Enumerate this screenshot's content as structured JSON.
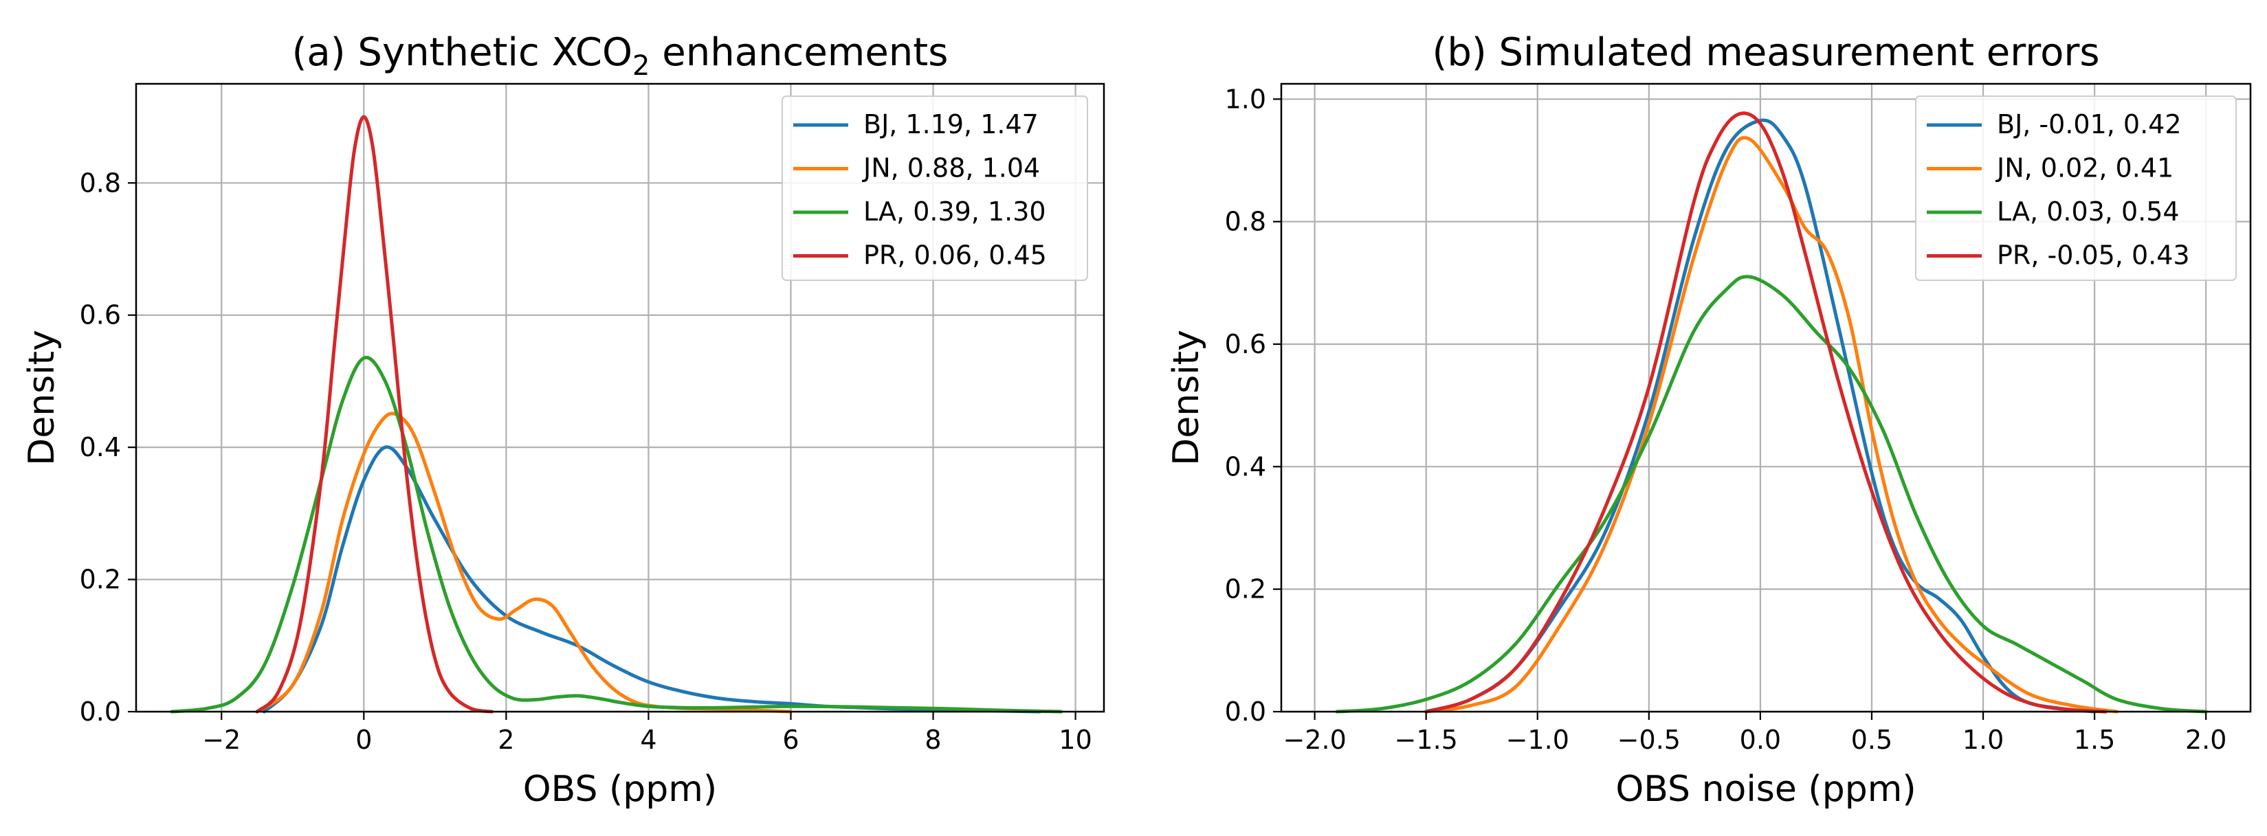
{
  "chart_data": [
    {
      "type": "line",
      "title": "(a) Synthetic XCO",
      "title_subscript": "2",
      "title_suffix": " enhancements",
      "xlabel": "OBS (ppm)",
      "ylabel": "Density",
      "xlim": [
        -3.2,
        10.4
      ],
      "ylim": [
        0,
        0.95
      ],
      "xticks": [
        -2,
        0,
        2,
        4,
        6,
        8,
        10
      ],
      "xtick_labels": [
        "−2",
        "0",
        "2",
        "4",
        "6",
        "8",
        "10"
      ],
      "yticks": [
        0,
        0.2,
        0.4,
        0.6,
        0.8
      ],
      "ytick_labels": [
        "0.0",
        "0.2",
        "0.4",
        "0.6",
        "0.8"
      ],
      "grid": true,
      "legend_position": "top-right",
      "series": [
        {
          "name": "BJ, 1.19, 1.47",
          "color": "#1f77b4",
          "x": [
            -1.4,
            -1.0,
            -0.6,
            -0.3,
            0.0,
            0.3,
            0.6,
            1.0,
            1.5,
            2.0,
            2.5,
            3.0,
            3.5,
            4.0,
            4.5,
            5.0,
            5.5,
            6.0,
            6.5,
            7.0,
            7.5,
            8.0,
            8.5,
            9.0,
            9.5
          ],
          "y": [
            0.0,
            0.04,
            0.13,
            0.25,
            0.35,
            0.4,
            0.37,
            0.29,
            0.2,
            0.145,
            0.12,
            0.1,
            0.07,
            0.045,
            0.03,
            0.02,
            0.015,
            0.012,
            0.008,
            0.006,
            0.004,
            0.003,
            0.002,
            0.001,
            0.0
          ]
        },
        {
          "name": "JN, 0.88, 1.04",
          "color": "#ff7f0e",
          "x": [
            -1.5,
            -1.0,
            -0.6,
            -0.3,
            0.0,
            0.25,
            0.45,
            0.7,
            1.0,
            1.3,
            1.6,
            1.9,
            2.15,
            2.4,
            2.65,
            2.9,
            3.2,
            3.5,
            3.8,
            4.1,
            4.5,
            5.0,
            5.5,
            6.0
          ],
          "y": [
            0.0,
            0.04,
            0.15,
            0.29,
            0.39,
            0.44,
            0.45,
            0.42,
            0.33,
            0.23,
            0.16,
            0.14,
            0.155,
            0.17,
            0.16,
            0.12,
            0.07,
            0.035,
            0.015,
            0.008,
            0.005,
            0.004,
            0.002,
            0.0
          ]
        },
        {
          "name": "LA, 0.39, 1.30",
          "color": "#2ca02c",
          "x": [
            -2.7,
            -2.2,
            -1.8,
            -1.4,
            -1.0,
            -0.6,
            -0.3,
            0.0,
            0.3,
            0.6,
            0.9,
            1.2,
            1.5,
            1.8,
            2.1,
            2.4,
            2.7,
            3.0,
            3.3,
            3.6,
            4.0,
            4.5,
            5.0,
            6.0,
            7.0,
            8.0,
            9.0,
            9.8
          ],
          "y": [
            0.0,
            0.005,
            0.02,
            0.07,
            0.19,
            0.35,
            0.47,
            0.535,
            0.5,
            0.4,
            0.27,
            0.16,
            0.085,
            0.04,
            0.02,
            0.018,
            0.022,
            0.024,
            0.02,
            0.014,
            0.008,
            0.006,
            0.006,
            0.008,
            0.007,
            0.005,
            0.002,
            0.0
          ]
        },
        {
          "name": "PR, 0.06, 0.45",
          "color": "#d62728",
          "x": [
            -1.5,
            -1.2,
            -0.9,
            -0.6,
            -0.4,
            -0.2,
            -0.1,
            0.0,
            0.1,
            0.2,
            0.4,
            0.6,
            0.8,
            1.0,
            1.2,
            1.5,
            1.8
          ],
          "y": [
            0.0,
            0.03,
            0.13,
            0.35,
            0.57,
            0.79,
            0.87,
            0.9,
            0.87,
            0.79,
            0.58,
            0.36,
            0.19,
            0.08,
            0.03,
            0.005,
            0.0
          ]
        }
      ]
    },
    {
      "type": "line",
      "title": "(b) Simulated measurement errors",
      "xlabel": "OBS noise (ppm)",
      "ylabel": "Density",
      "xlim": [
        -2.15,
        2.2
      ],
      "ylim": [
        0,
        1.025
      ],
      "xticks": [
        -2.0,
        -1.5,
        -1.0,
        -0.5,
        0.0,
        0.5,
        1.0,
        1.5,
        2.0
      ],
      "xtick_labels": [
        "−2.0",
        "−1.5",
        "−1.0",
        "−0.5",
        "0.0",
        "0.5",
        "1.0",
        "1.5",
        "2.0"
      ],
      "yticks": [
        0,
        0.2,
        0.4,
        0.6,
        0.8,
        1.0
      ],
      "ytick_labels": [
        "0.0",
        "0.2",
        "0.4",
        "0.6",
        "0.8",
        "1.0"
      ],
      "grid": true,
      "legend_position": "top-right",
      "series": [
        {
          "name": "BJ, -0.01, 0.42",
          "color": "#1f77b4",
          "x": [
            -1.5,
            -1.3,
            -1.1,
            -0.9,
            -0.7,
            -0.5,
            -0.3,
            -0.15,
            0.0,
            0.1,
            0.2,
            0.35,
            0.5,
            0.6,
            0.7,
            0.8,
            0.9,
            1.0,
            1.1,
            1.2,
            1.35,
            1.5
          ],
          "y": [
            0.0,
            0.02,
            0.07,
            0.17,
            0.29,
            0.49,
            0.77,
            0.92,
            0.965,
            0.94,
            0.86,
            0.63,
            0.39,
            0.27,
            0.21,
            0.185,
            0.15,
            0.09,
            0.04,
            0.015,
            0.005,
            0.0
          ]
        },
        {
          "name": "JN, 0.02, 0.41",
          "color": "#ff7f0e",
          "x": [
            -1.5,
            -1.3,
            -1.1,
            -0.9,
            -0.7,
            -0.5,
            -0.3,
            -0.15,
            -0.05,
            0.1,
            0.2,
            0.3,
            0.4,
            0.5,
            0.6,
            0.7,
            0.8,
            0.9,
            1.0,
            1.2,
            1.4,
            1.6
          ],
          "y": [
            0.0,
            0.01,
            0.04,
            0.14,
            0.27,
            0.47,
            0.74,
            0.9,
            0.935,
            0.86,
            0.79,
            0.75,
            0.64,
            0.46,
            0.31,
            0.21,
            0.15,
            0.11,
            0.08,
            0.03,
            0.01,
            0.0
          ]
        },
        {
          "name": "LA, 0.03, 0.54",
          "color": "#2ca02c",
          "x": [
            -1.9,
            -1.7,
            -1.5,
            -1.3,
            -1.1,
            -0.9,
            -0.7,
            -0.5,
            -0.3,
            -0.15,
            -0.05,
            0.1,
            0.25,
            0.4,
            0.55,
            0.7,
            0.85,
            1.0,
            1.15,
            1.3,
            1.45,
            1.6,
            1.8,
            2.0
          ],
          "y": [
            0.0,
            0.005,
            0.02,
            0.05,
            0.11,
            0.21,
            0.31,
            0.45,
            0.62,
            0.69,
            0.71,
            0.68,
            0.62,
            0.56,
            0.46,
            0.32,
            0.21,
            0.14,
            0.11,
            0.08,
            0.05,
            0.02,
            0.005,
            0.0
          ]
        },
        {
          "name": "PR, -0.05, 0.43",
          "color": "#d62728",
          "x": [
            -1.5,
            -1.3,
            -1.1,
            -0.9,
            -0.7,
            -0.5,
            -0.3,
            -0.2,
            -0.1,
            0.0,
            0.1,
            0.2,
            0.35,
            0.5,
            0.65,
            0.8,
            0.95,
            1.1,
            1.25,
            1.4,
            1.55
          ],
          "y": [
            0.0,
            0.02,
            0.07,
            0.18,
            0.33,
            0.53,
            0.83,
            0.93,
            0.975,
            0.96,
            0.88,
            0.75,
            0.54,
            0.36,
            0.22,
            0.13,
            0.07,
            0.03,
            0.01,
            0.003,
            0.0
          ]
        }
      ]
    }
  ]
}
